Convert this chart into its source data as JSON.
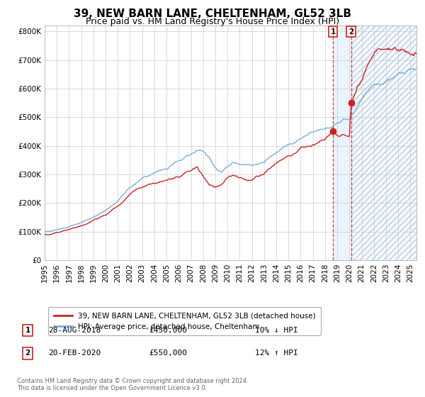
{
  "title": "39, NEW BARN LANE, CHELTENHAM, GL52 3LB",
  "subtitle": "Price paid vs. HM Land Registry's House Price Index (HPI)",
  "ylim": [
    0,
    820000
  ],
  "yticks": [
    0,
    100000,
    200000,
    300000,
    400000,
    500000,
    600000,
    700000,
    800000
  ],
  "ytick_labels": [
    "£0",
    "£100K",
    "£200K",
    "£300K",
    "£400K",
    "£500K",
    "£600K",
    "£700K",
    "£800K"
  ],
  "xlim_start": 1995.0,
  "xlim_end": 2025.5,
  "t1_x": 2018.65,
  "t1_price": 450000,
  "t1_label": "28-AUG-2018",
  "t1_pct": "10% ↓ HPI",
  "t2_x": 2020.13,
  "t2_price": 550000,
  "t2_label": "20-FEB-2020",
  "t2_pct": "12% ↑ HPI",
  "legend_line1": "39, NEW BARN LANE, CHELTENHAM, GL52 3LB (detached house)",
  "legend_line2": "HPI: Average price, detached house, Cheltenham",
  "footer1": "Contains HM Land Registry data © Crown copyright and database right 2024.",
  "footer2": "This data is licensed under the Open Government Licence v3.0.",
  "hpi_color": "#7aadda",
  "price_color": "#cc2222",
  "bg_color": "#ffffff",
  "grid_color": "#cccccc",
  "title_fontsize": 11,
  "subtitle_fontsize": 9,
  "axis_fontsize": 7.5,
  "shade_color": "#ddeeff",
  "hatch_color": "#aabbcc"
}
